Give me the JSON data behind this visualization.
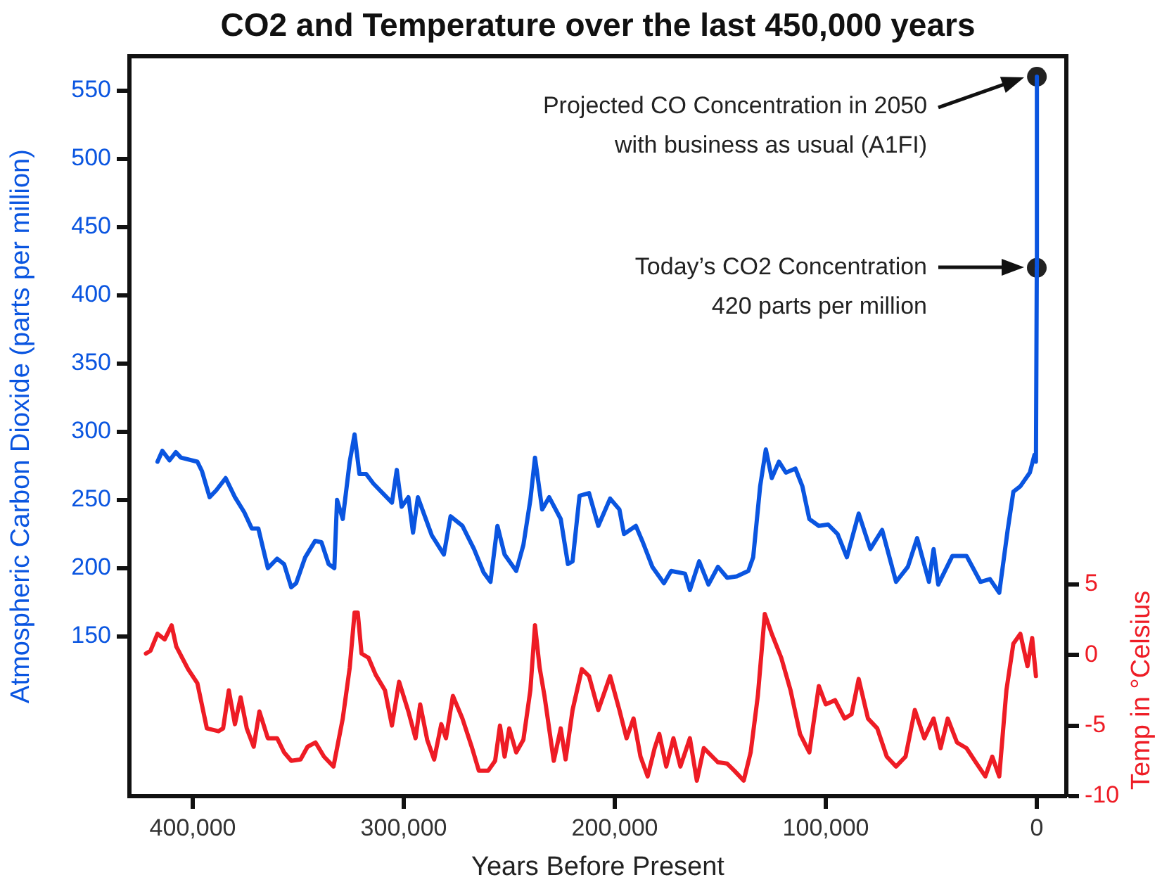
{
  "chart_data": {
    "type": "line",
    "title": "CO2 and Temperature over the last 450,000 years",
    "xlabel": "Years Before Present",
    "ylabel": "Atmospheric Carbon Dioxide (parts per million)",
    "y2label": "Temp in °Celsius",
    "xlim": [
      430000,
      -14000
    ],
    "xticks": [
      {
        "value": 400000,
        "label": "400,000"
      },
      {
        "value": 300000,
        "label": "300,000"
      },
      {
        "value": 200000,
        "label": "200,000"
      },
      {
        "value": 100000,
        "label": "100,000"
      },
      0
    ],
    "ylim": [
      33,
      575
    ],
    "yticks": [
      150,
      200,
      250,
      300,
      350,
      400,
      450,
      500,
      550
    ],
    "y2lim": [
      -10,
      42.4
    ],
    "y2ticks": [
      -10,
      -5,
      0,
      5
    ],
    "grid": false,
    "legend": false,
    "marker": "none",
    "line_style": "solid",
    "series": [
      {
        "color": "#0a55e0",
        "x": [
          416700,
          414400,
          411000,
          408000,
          405600,
          397800,
          395600,
          392000,
          388900,
          384400,
          380000,
          375600,
          372000,
          368900,
          364400,
          360000,
          356700,
          353300,
          351000,
          346700,
          342000,
          339000,
          335600,
          332900,
          331600,
          328900,
          325600,
          323300,
          321000,
          317800,
          314400,
          310000,
          305600,
          303300,
          301000,
          297800,
          295600,
          293300,
          290000,
          286700,
          281000,
          277800,
          272200,
          266700,
          262200,
          258900,
          255600,
          252200,
          246700,
          243300,
          240000,
          237800,
          234400,
          231100,
          225600,
          222200,
          220000,
          216700,
          212200,
          207800,
          202200,
          197800,
          195600,
          190000,
          186700,
          182200,
          176700,
          173300,
          166700,
          164400,
          160000,
          155600,
          151100,
          146700,
          142200,
          136700,
          134400,
          131100,
          128400,
          125600,
          122200,
          118900,
          114400,
          111100,
          107800,
          103300,
          98900,
          94400,
          90000,
          84400,
          78900,
          73300,
          66700,
          61100,
          56700,
          51100,
          48900,
          46700,
          40000,
          33300,
          26700,
          22200,
          17800,
          13800,
          11100,
          7800,
          3300,
          1100,
          400,
          0,
          -50
        ],
        "values": [
          278,
          286,
          279,
          285,
          281,
          278,
          271,
          252,
          257,
          266,
          252,
          241,
          229,
          229,
          200,
          207,
          203,
          186,
          189,
          208,
          220,
          219,
          203,
          200,
          250,
          236,
          278,
          298,
          269,
          269,
          262,
          255,
          248,
          272,
          245,
          252,
          226,
          252,
          238,
          224,
          210,
          238,
          231,
          214,
          197,
          190,
          231,
          210,
          198,
          217,
          250,
          281,
          243,
          252,
          236,
          203,
          205,
          253,
          255,
          231,
          251,
          243,
          225,
          231,
          219,
          201,
          189,
          198,
          196,
          184,
          205,
          188,
          201,
          193,
          194,
          198,
          208,
          260,
          287,
          266,
          278,
          270,
          273,
          260,
          236,
          231,
          232,
          225,
          208,
          240,
          214,
          228,
          190,
          201,
          222,
          190,
          214,
          188,
          209,
          209,
          190,
          192,
          182,
          228,
          256,
          260,
          270,
          283,
          278,
          420,
          560
        ]
      },
      {
        "color": "#ee1c25",
        "axis": "y2",
        "x": [
          422200,
          420000,
          416700,
          413300,
          410000,
          407800,
          402200,
          397800,
          393300,
          387800,
          385600,
          382900,
          380000,
          377300,
          374400,
          371100,
          368400,
          364400,
          360000,
          356700,
          353300,
          348900,
          345600,
          341800,
          337800,
          333300,
          328900,
          325600,
          323300,
          321800,
          320000,
          316700,
          313300,
          308900,
          305600,
          302200,
          297800,
          294400,
          292200,
          288900,
          285600,
          282200,
          280000,
          276700,
          272200,
          267800,
          264400,
          260000,
          256700,
          254400,
          252200,
          250000,
          246700,
          243300,
          240000,
          237800,
          235600,
          233300,
          228900,
          225600,
          223300,
          220000,
          215600,
          212200,
          207800,
          202200,
          197800,
          194400,
          191100,
          187800,
          184400,
          181100,
          178900,
          175600,
          172200,
          168900,
          164400,
          161100,
          157800,
          151100,
          146700,
          143300,
          138900,
          135600,
          132200,
          128900,
          125600,
          121100,
          116700,
          112200,
          107800,
          103300,
          100000,
          95600,
          91100,
          87800,
          84400,
          80000,
          75600,
          71100,
          66700,
          62200,
          57800,
          53300,
          48900,
          45600,
          42200,
          37800,
          33300,
          28900,
          24400,
          21100,
          17800,
          14400,
          11100,
          7800,
          4400,
          2200,
          400
        ],
        "values": [
          0.1,
          0.3,
          1.5,
          1.1,
          2.1,
          0.6,
          -1.0,
          -2.0,
          -5.2,
          -5.4,
          -5.2,
          -2.5,
          -4.9,
          -3.0,
          -5.2,
          -6.5,
          -4.0,
          -5.9,
          -5.9,
          -6.9,
          -7.5,
          -7.4,
          -6.5,
          -6.2,
          -7.2,
          -7.9,
          -4.5,
          -0.9,
          3.0,
          3.0,
          0.1,
          -0.2,
          -1.4,
          -2.5,
          -5.0,
          -1.9,
          -4.0,
          -5.9,
          -3.5,
          -6.0,
          -7.4,
          -4.9,
          -5.9,
          -2.9,
          -4.5,
          -6.5,
          -8.2,
          -8.2,
          -7.5,
          -5.0,
          -7.2,
          -5.2,
          -6.9,
          -6.0,
          -2.5,
          2.1,
          -0.9,
          -2.9,
          -7.5,
          -5.2,
          -7.4,
          -3.9,
          -1.0,
          -1.5,
          -3.9,
          -1.5,
          -3.9,
          -5.9,
          -4.5,
          -7.2,
          -8.6,
          -6.6,
          -5.6,
          -7.9,
          -5.9,
          -7.9,
          -5.9,
          -8.9,
          -6.6,
          -7.6,
          -7.7,
          -8.2,
          -8.9,
          -6.9,
          -2.9,
          2.9,
          1.5,
          -0.2,
          -2.5,
          -5.6,
          -6.9,
          -2.2,
          -3.5,
          -3.2,
          -4.5,
          -4.2,
          -1.7,
          -4.5,
          -5.2,
          -7.2,
          -7.9,
          -7.2,
          -3.9,
          -5.9,
          -4.5,
          -6.6,
          -4.5,
          -6.2,
          -6.6,
          -7.6,
          -8.6,
          -7.2,
          -8.6,
          -2.5,
          0.8,
          1.5,
          -0.8,
          1.2,
          -1.5
        ]
      },
      {
        "type": "scatter",
        "marker": "circle",
        "color": "#222222",
        "x": [
          -50,
          0
        ],
        "values": [
          560,
          420
        ]
      }
    ],
    "annotations": [
      "Projected CO Concentration in 2050\nwith business as usual (A1FI)",
      "Today’s CO2 Concentration\n420 parts per million"
    ]
  }
}
